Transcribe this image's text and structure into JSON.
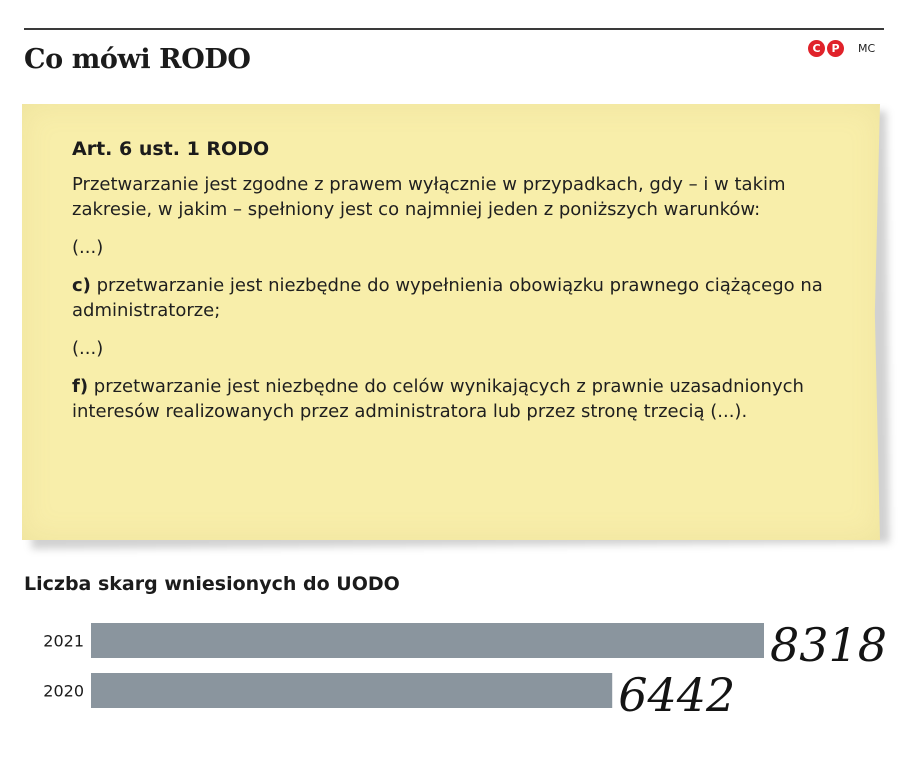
{
  "header": {
    "title": "Co mówi RODO",
    "brand_mark_1": "C",
    "brand_mark_2": "P",
    "author": "MC"
  },
  "note": {
    "heading": "Art. 6 ust. 1 RODO",
    "intro": "Przetwarzanie jest zgodne z prawem wyłącznie w przypadkach, gdy – i w takim zakresie, w jakim – spełniony jest co najmniej jeden z poniższych warunków:",
    "ellipsis_1": "(...)",
    "point_c_label": "c)",
    "point_c_text": " przetwarzanie jest niezbędne do wypełnienia obowiązku prawnego ciążącego na administratorze;",
    "ellipsis_2": "(...)",
    "point_f_label": "f)",
    "point_f_text": " przetwarzanie jest niezbędne do celów wynikających z prawnie uzasadnionych interesów realizowanych przez administratora lub przez stronę trzecią (...)."
  },
  "chart_data": {
    "type": "bar",
    "orientation": "horizontal",
    "title": "Liczba skarg wniesionych do UODO",
    "categories": [
      "2021",
      "2020"
    ],
    "values": [
      8318,
      6442
    ],
    "value_labels": [
      "8318",
      "6442"
    ],
    "bar_color": "#8a959e",
    "grid": false,
    "legend": "none"
  }
}
